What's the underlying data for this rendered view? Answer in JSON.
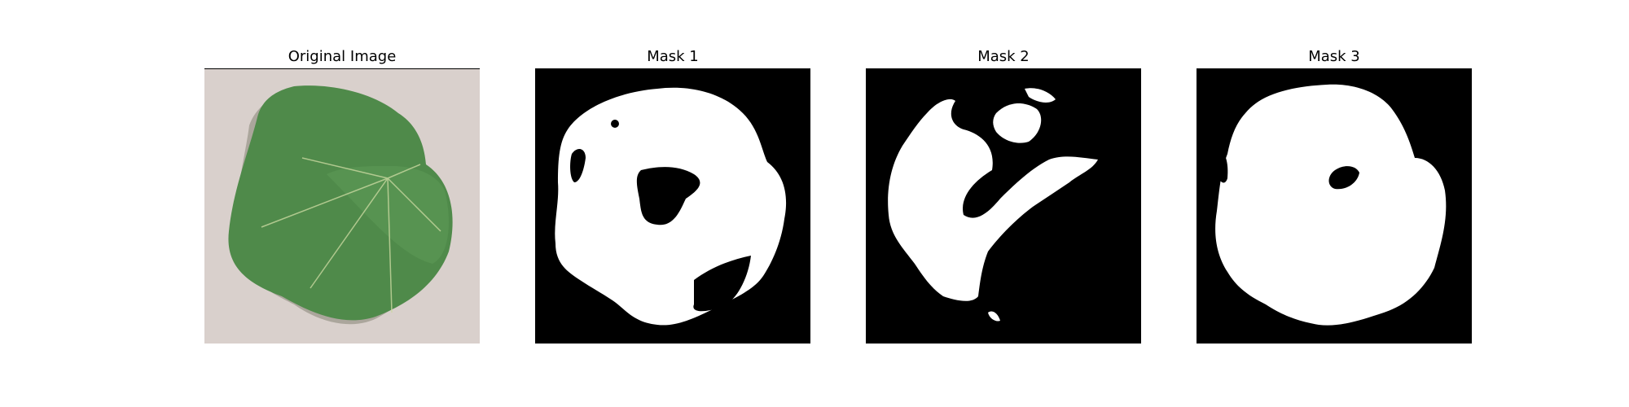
{
  "figure": {
    "panels": [
      {
        "title": "Original Image"
      },
      {
        "title": "Mask 1"
      },
      {
        "title": "Mask 2"
      },
      {
        "title": "Mask 3"
      }
    ]
  },
  "colors": {
    "background": "#ffffff",
    "mask_background": "#000000",
    "mask_foreground": "#ffffff",
    "leaf": "#4f8a4a",
    "leaf_dark": "#3c6f39",
    "ground": "#d9d0cc"
  }
}
